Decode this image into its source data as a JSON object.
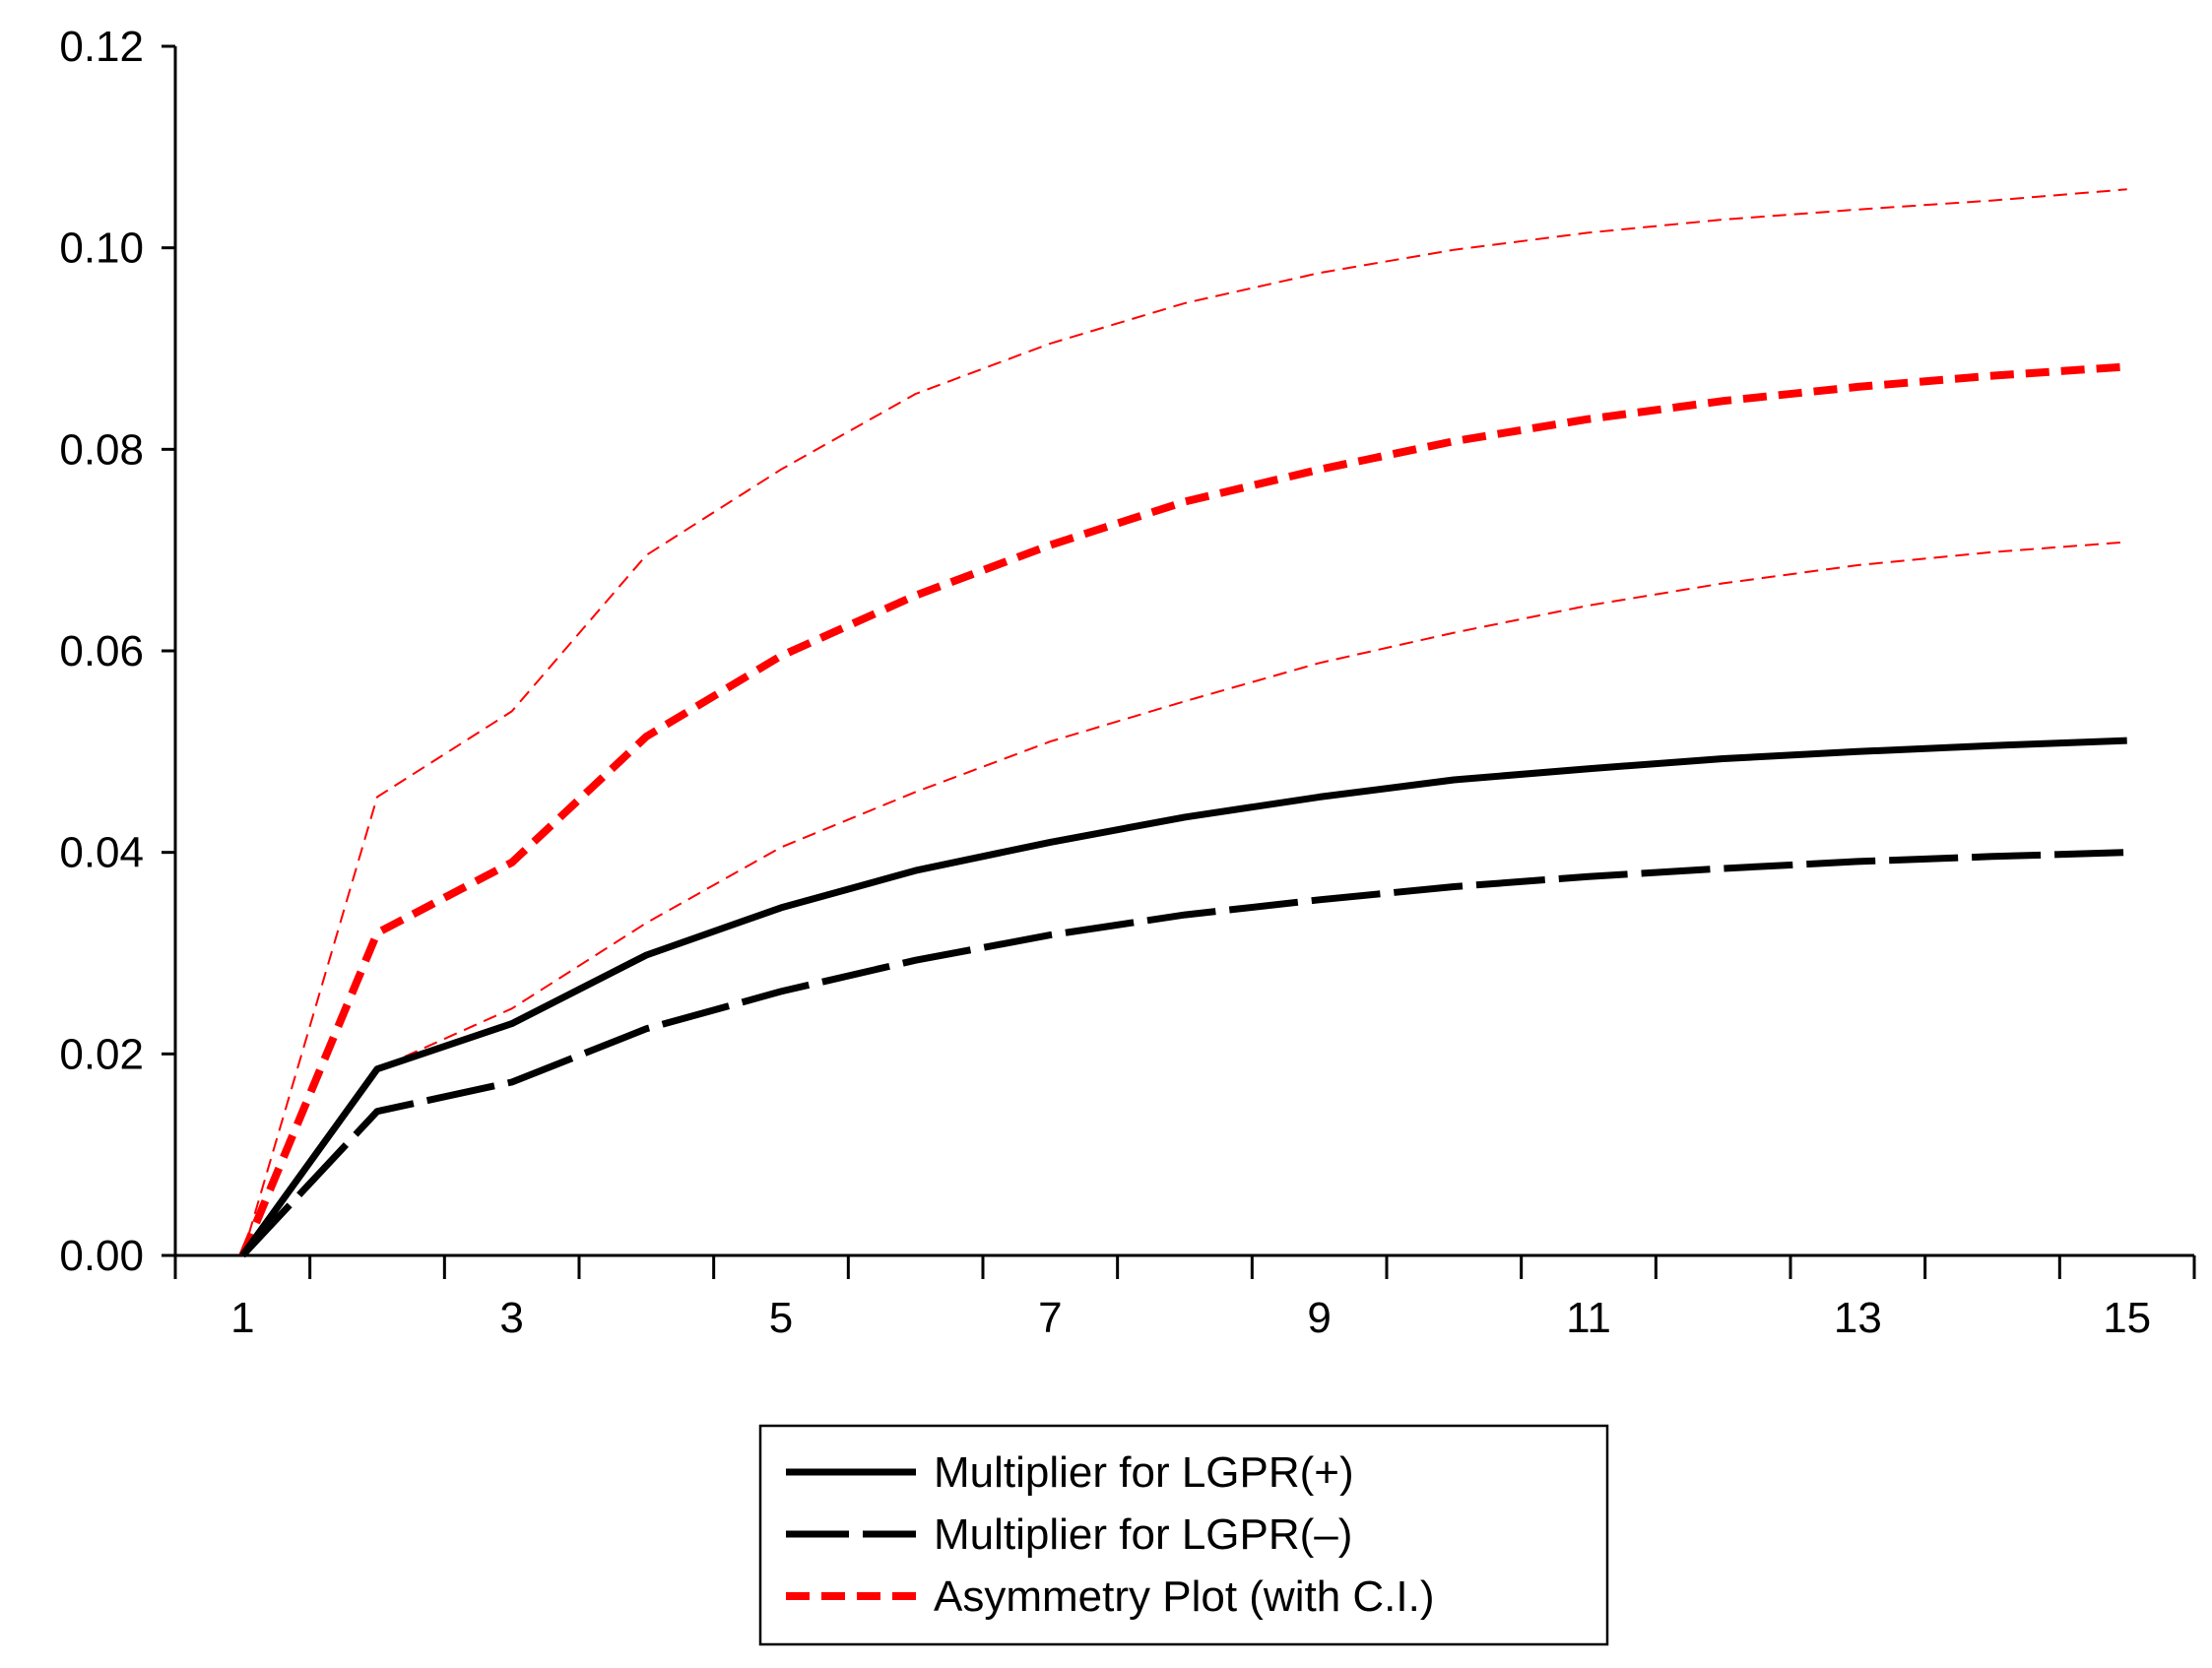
{
  "chart_data": {
    "type": "line",
    "title": "",
    "xlabel": "",
    "ylabel": "",
    "xlim": [
      0.5,
      15.5
    ],
    "ylim": [
      0,
      0.12
    ],
    "x": [
      1,
      2,
      3,
      4,
      5,
      6,
      7,
      8,
      9,
      10,
      11,
      12,
      13,
      14,
      15
    ],
    "x_tick_labels": [
      "1",
      "3",
      "5",
      "7",
      "9",
      "11",
      "13",
      "15"
    ],
    "x_tick_label_values": [
      1,
      3,
      5,
      7,
      9,
      11,
      13,
      15
    ],
    "x_minor_ticks": [
      0.5,
      1.5,
      2.5,
      3.5,
      4.5,
      5.5,
      6.5,
      7.5,
      8.5,
      9.5,
      10.5,
      11.5,
      12.5,
      13.5,
      14.5,
      15.5
    ],
    "y_ticks": [
      0,
      0.02,
      0.04,
      0.06,
      0.08,
      0.1,
      0.12
    ],
    "y_tick_labels": [
      "0.00",
      "0.02",
      "0.04",
      "0.06",
      "0.08",
      "0.10",
      "0.12"
    ],
    "grid": false,
    "legend_position": "bottom-center",
    "series": [
      {
        "key": "ci_upper",
        "in_legend": false,
        "color": "#ff0000",
        "style": "thin-dashed",
        "values": [
          0.0,
          0.0455,
          0.054,
          0.0695,
          0.078,
          0.0855,
          0.0905,
          0.0945,
          0.0975,
          0.0998,
          0.1015,
          0.1028,
          0.1038,
          0.1047,
          0.1058
        ]
      },
      {
        "key": "ci_lower",
        "in_legend": false,
        "color": "#ff0000",
        "style": "thin-dashed",
        "values": [
          0.0,
          0.0185,
          0.0245,
          0.033,
          0.0405,
          0.046,
          0.051,
          0.055,
          0.0588,
          0.0618,
          0.0645,
          0.0667,
          0.0685,
          0.0698,
          0.0708
        ]
      },
      {
        "key": "asymmetry",
        "in_legend": true,
        "color": "#ff0000",
        "style": "thick-dashed",
        "values": [
          0.0,
          0.032,
          0.039,
          0.0515,
          0.0595,
          0.0655,
          0.0705,
          0.0748,
          0.078,
          0.0808,
          0.083,
          0.0848,
          0.0862,
          0.0873,
          0.0882
        ]
      },
      {
        "key": "positive",
        "in_legend": true,
        "color": "#000000",
        "style": "thick-solid",
        "values": [
          0.0,
          0.0185,
          0.023,
          0.0298,
          0.0345,
          0.0382,
          0.041,
          0.0435,
          0.0455,
          0.0472,
          0.0483,
          0.0493,
          0.05,
          0.0506,
          0.0511
        ]
      },
      {
        "key": "negative",
        "in_legend": true,
        "color": "#000000",
        "style": "thick-longdash",
        "values": [
          0.0,
          0.0143,
          0.0172,
          0.0225,
          0.0262,
          0.0293,
          0.0318,
          0.0338,
          0.0353,
          0.0366,
          0.0376,
          0.0384,
          0.0391,
          0.0396,
          0.04
        ]
      }
    ],
    "legend": [
      {
        "label": "Multiplier for LGPR(+)",
        "color": "#000000",
        "style": "thick-solid"
      },
      {
        "label": "Multiplier for LGPR(–)",
        "color": "#000000",
        "style": "thick-longdash"
      },
      {
        "label": "Asymmetry Plot (with C.I.)",
        "color": "#ff0000",
        "style": "thick-dashed"
      }
    ]
  }
}
